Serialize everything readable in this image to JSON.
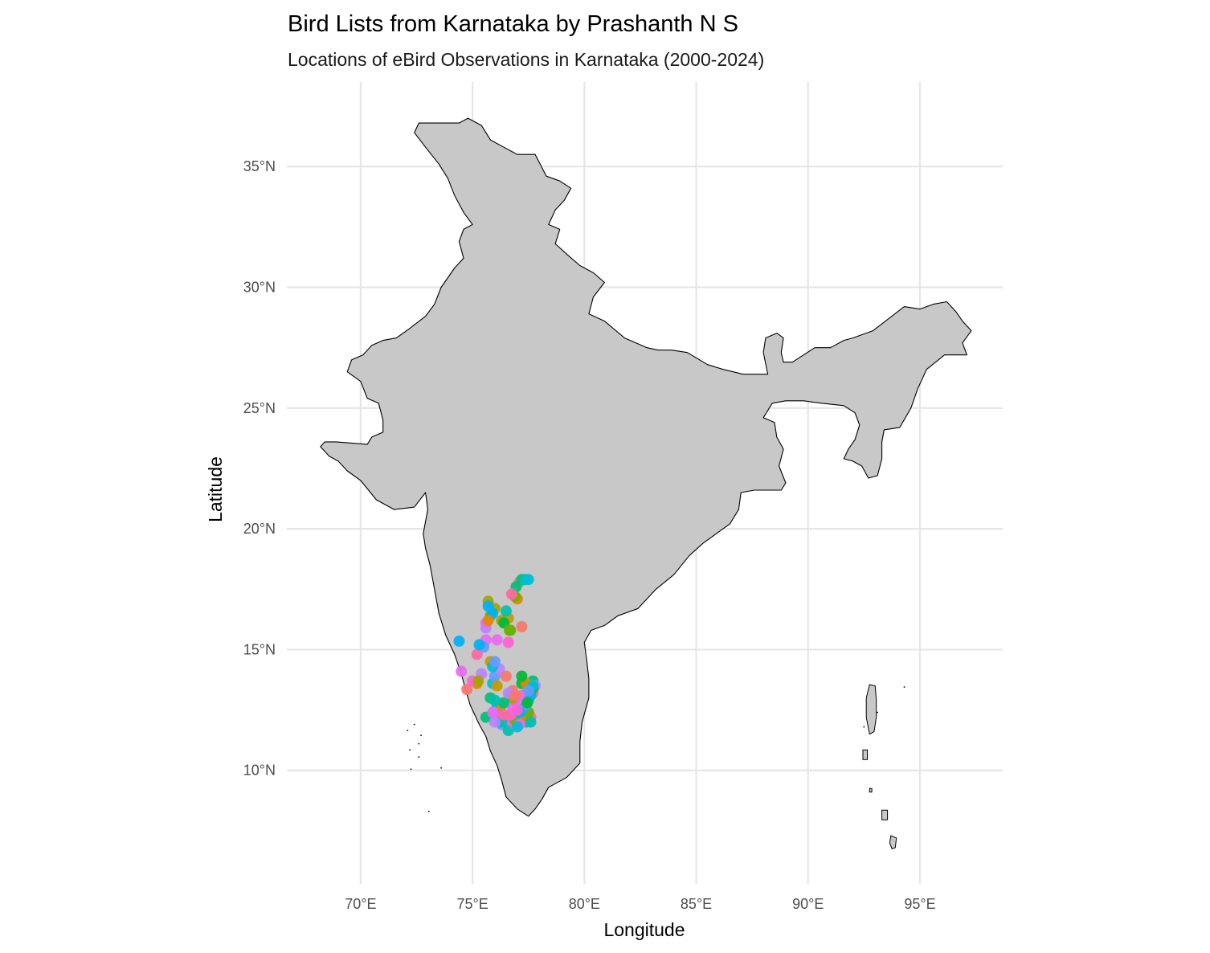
{
  "chart_data": {
    "type": "scatter",
    "title": "Bird Lists from Karnataka by Prashanth N S",
    "subtitle": "Locations of eBird Observations in Karnataka (2000-2024)",
    "xlabel": "Longitude",
    "ylabel": "Latitude",
    "xlim": [
      66.7,
      98.7
    ],
    "ylim": [
      5.3,
      38.5
    ],
    "x_ticks": [
      {
        "value": 70,
        "label": "70°E"
      },
      {
        "value": 75,
        "label": "75°E"
      },
      {
        "value": 80,
        "label": "80°E"
      },
      {
        "value": 85,
        "label": "85°E"
      },
      {
        "value": 90,
        "label": "90°E"
      },
      {
        "value": 95,
        "label": "95°E"
      }
    ],
    "y_ticks": [
      {
        "value": 10,
        "label": "10°N"
      },
      {
        "value": 15,
        "label": "15°N"
      },
      {
        "value": 20,
        "label": "20°N"
      },
      {
        "value": 25,
        "label": "25°N"
      },
      {
        "value": 30,
        "label": "30°N"
      },
      {
        "value": 35,
        "label": "35°N"
      }
    ],
    "grid": true,
    "legend": "none",
    "colors": {
      "land_fill": "#c8c8c8",
      "border": "#000000",
      "grid": "#e6e6e6",
      "palette": [
        "#F8766D",
        "#E58700",
        "#C99800",
        "#A3A500",
        "#6BB100",
        "#00BA38",
        "#00BF7D",
        "#00C0AF",
        "#00BCD8",
        "#00B0F6",
        "#619CFF",
        "#B983FF",
        "#E76BF3",
        "#FD61D1",
        "#FF67A4"
      ]
    },
    "boundary": [
      [
        70.3,
        23.5
      ],
      [
        68.9,
        23.6
      ],
      [
        68.4,
        23.6
      ],
      [
        68.2,
        23.4
      ],
      [
        68.6,
        23.0
      ],
      [
        69.0,
        22.8
      ],
      [
        69.4,
        22.4
      ],
      [
        70.0,
        22.0
      ],
      [
        70.7,
        21.2
      ],
      [
        71.5,
        20.8
      ],
      [
        72.4,
        20.9
      ],
      [
        72.9,
        21.5
      ],
      [
        73.0,
        20.8
      ],
      [
        72.8,
        19.8
      ],
      [
        72.9,
        19.2
      ],
      [
        73.1,
        18.5
      ],
      [
        73.3,
        17.5
      ],
      [
        73.5,
        16.5
      ],
      [
        73.8,
        15.6
      ],
      [
        74.2,
        14.8
      ],
      [
        74.5,
        14.0
      ],
      [
        74.7,
        13.3
      ],
      [
        74.9,
        12.7
      ],
      [
        75.3,
        11.9
      ],
      [
        75.6,
        11.4
      ],
      [
        75.8,
        10.8
      ],
      [
        76.1,
        10.2
      ],
      [
        76.3,
        9.6
      ],
      [
        76.5,
        8.9
      ],
      [
        77.0,
        8.4
      ],
      [
        77.5,
        8.1
      ],
      [
        77.8,
        8.4
      ],
      [
        78.1,
        8.8
      ],
      [
        78.4,
        9.3
      ],
      [
        79.2,
        9.7
      ],
      [
        79.8,
        10.3
      ],
      [
        79.8,
        11.2
      ],
      [
        79.9,
        12.0
      ],
      [
        80.2,
        13.0
      ],
      [
        80.2,
        13.8
      ],
      [
        80.1,
        14.6
      ],
      [
        80.0,
        15.3
      ],
      [
        80.3,
        15.8
      ],
      [
        80.9,
        16.0
      ],
      [
        81.5,
        16.4
      ],
      [
        82.4,
        16.7
      ],
      [
        83.2,
        17.5
      ],
      [
        84.0,
        18.1
      ],
      [
        84.7,
        18.9
      ],
      [
        85.3,
        19.4
      ],
      [
        85.9,
        19.8
      ],
      [
        86.5,
        20.2
      ],
      [
        86.9,
        20.8
      ],
      [
        87.0,
        21.5
      ],
      [
        87.6,
        21.6
      ],
      [
        88.2,
        21.6
      ],
      [
        88.8,
        21.6
      ],
      [
        89.0,
        21.9
      ],
      [
        88.7,
        22.6
      ],
      [
        88.9,
        23.3
      ],
      [
        88.6,
        23.8
      ],
      [
        88.5,
        24.4
      ],
      [
        88.0,
        24.6
      ],
      [
        88.4,
        25.2
      ],
      [
        89.0,
        25.3
      ],
      [
        89.8,
        25.3
      ],
      [
        90.6,
        25.2
      ],
      [
        91.6,
        25.1
      ],
      [
        92.1,
        24.8
      ],
      [
        92.3,
        24.3
      ],
      [
        92.1,
        23.7
      ],
      [
        91.8,
        23.3
      ],
      [
        91.6,
        22.9
      ],
      [
        92.0,
        22.8
      ],
      [
        92.4,
        22.6
      ],
      [
        92.7,
        22.1
      ],
      [
        93.1,
        22.2
      ],
      [
        93.3,
        22.9
      ],
      [
        93.3,
        23.6
      ],
      [
        93.4,
        24.1
      ],
      [
        94.1,
        24.2
      ],
      [
        94.6,
        25.0
      ],
      [
        94.9,
        25.8
      ],
      [
        95.3,
        26.6
      ],
      [
        96.1,
        27.2
      ],
      [
        97.1,
        27.2
      ],
      [
        96.9,
        27.7
      ],
      [
        97.3,
        28.2
      ],
      [
        96.9,
        28.6
      ],
      [
        96.6,
        29.0
      ],
      [
        96.2,
        29.4
      ],
      [
        95.6,
        29.3
      ],
      [
        95.0,
        29.1
      ],
      [
        94.3,
        29.2
      ],
      [
        93.6,
        28.7
      ],
      [
        92.9,
        28.2
      ],
      [
        92.0,
        27.9
      ],
      [
        91.6,
        27.8
      ],
      [
        91.0,
        27.5
      ],
      [
        90.3,
        27.5
      ],
      [
        89.8,
        27.2
      ],
      [
        89.3,
        26.9
      ],
      [
        88.9,
        26.9
      ],
      [
        88.8,
        27.3
      ],
      [
        88.9,
        27.9
      ],
      [
        88.6,
        28.1
      ],
      [
        88.1,
        27.9
      ],
      [
        88.0,
        27.3
      ],
      [
        88.2,
        26.4
      ],
      [
        87.1,
        26.4
      ],
      [
        86.2,
        26.6
      ],
      [
        85.5,
        26.8
      ],
      [
        84.6,
        27.3
      ],
      [
        83.9,
        27.4
      ],
      [
        83.3,
        27.4
      ],
      [
        82.8,
        27.5
      ],
      [
        81.8,
        27.9
      ],
      [
        80.9,
        28.6
      ],
      [
        80.2,
        28.9
      ],
      [
        80.4,
        29.6
      ],
      [
        80.9,
        30.2
      ],
      [
        80.4,
        30.6
      ],
      [
        79.8,
        30.9
      ],
      [
        79.3,
        31.3
      ],
      [
        78.7,
        31.8
      ],
      [
        78.9,
        32.4
      ],
      [
        78.4,
        32.6
      ],
      [
        78.7,
        33.2
      ],
      [
        79.1,
        33.6
      ],
      [
        79.4,
        34.1
      ],
      [
        78.9,
        34.4
      ],
      [
        78.3,
        34.6
      ],
      [
        77.8,
        35.5
      ],
      [
        77.0,
        35.5
      ],
      [
        76.4,
        35.8
      ],
      [
        75.8,
        36.1
      ],
      [
        75.4,
        36.7
      ],
      [
        74.8,
        37.0
      ],
      [
        74.4,
        36.8
      ],
      [
        73.9,
        36.8
      ],
      [
        72.6,
        36.8
      ],
      [
        72.4,
        36.4
      ],
      [
        72.9,
        35.8
      ],
      [
        73.5,
        35.1
      ],
      [
        73.9,
        34.5
      ],
      [
        74.2,
        33.8
      ],
      [
        74.6,
        33.1
      ],
      [
        75.0,
        32.6
      ],
      [
        74.6,
        32.4
      ],
      [
        74.4,
        31.9
      ],
      [
        74.6,
        31.2
      ],
      [
        74.2,
        30.8
      ],
      [
        73.6,
        30.0
      ],
      [
        73.3,
        29.3
      ],
      [
        72.9,
        28.8
      ],
      [
        72.2,
        28.3
      ],
      [
        71.6,
        27.9
      ],
      [
        71.0,
        27.8
      ],
      [
        70.5,
        27.6
      ],
      [
        70.1,
        27.2
      ],
      [
        69.6,
        27.0
      ],
      [
        69.4,
        26.5
      ],
      [
        70.0,
        26.1
      ],
      [
        70.3,
        25.4
      ],
      [
        70.8,
        25.2
      ],
      [
        71.0,
        24.5
      ],
      [
        71.0,
        24.0
      ],
      [
        70.5,
        23.8
      ],
      [
        70.3,
        23.5
      ]
    ],
    "islands": [
      {
        "name": "Andaman",
        "points": [
          [
            92.75,
            13.55
          ],
          [
            93.0,
            13.5
          ],
          [
            93.05,
            12.9
          ],
          [
            93.05,
            12.2
          ],
          [
            92.95,
            11.6
          ],
          [
            92.75,
            11.5
          ],
          [
            92.6,
            12.2
          ],
          [
            92.6,
            13.0
          ],
          [
            92.75,
            13.55
          ]
        ]
      },
      {
        "name": "Little Andaman",
        "points": [
          [
            92.45,
            10.85
          ],
          [
            92.65,
            10.85
          ],
          [
            92.65,
            10.45
          ],
          [
            92.45,
            10.45
          ],
          [
            92.45,
            10.85
          ]
        ]
      },
      {
        "name": "Car Nicobar",
        "points": [
          [
            92.75,
            9.25
          ],
          [
            92.85,
            9.25
          ],
          [
            92.85,
            9.1
          ],
          [
            92.75,
            9.1
          ],
          [
            92.75,
            9.25
          ]
        ]
      },
      {
        "name": "Nancowry",
        "points": [
          [
            93.3,
            8.35
          ],
          [
            93.55,
            8.35
          ],
          [
            93.55,
            7.95
          ],
          [
            93.3,
            7.95
          ],
          [
            93.3,
            8.35
          ]
        ]
      },
      {
        "name": "Great Nicobar",
        "points": [
          [
            93.7,
            7.3
          ],
          [
            93.95,
            7.2
          ],
          [
            93.9,
            6.8
          ],
          [
            93.75,
            6.75
          ],
          [
            93.65,
            7.0
          ],
          [
            93.7,
            7.3
          ]
        ]
      }
    ],
    "specks": [
      [
        72.1,
        11.65
      ],
      [
        72.7,
        11.45
      ],
      [
        72.6,
        11.1
      ],
      [
        72.6,
        10.55
      ],
      [
        72.2,
        10.85
      ],
      [
        72.25,
        10.05
      ],
      [
        73.6,
        10.1
      ],
      [
        73.05,
        8.3
      ],
      [
        72.4,
        11.9
      ],
      [
        94.3,
        13.45
      ],
      [
        93.1,
        12.4
      ],
      [
        92.5,
        11.8
      ]
    ],
    "series": [
      {
        "name": "",
        "x": [
          77.1,
          77.0,
          76.6,
          76.3,
          76.7,
          77.2,
          77.5,
          76.5,
          75.9,
          76.1,
          76.3,
          77.6,
          76.8,
          77.2
        ],
        "y": [
          17.8,
          17.1,
          16.3,
          16.2,
          15.8,
          13.6,
          12.9,
          12.2,
          13.6,
          12.6,
          11.9,
          13.2,
          12.6,
          13.1
        ]
      },
      {
        "name": "",
        "x": [
          76.0,
          75.8,
          76.4,
          77.7,
          76.6,
          76.1,
          77.4,
          76.7,
          77.8,
          75.6,
          76.9
        ],
        "y": [
          16.7,
          16.4,
          16.1,
          13.7,
          11.65,
          12.3,
          12.0,
          13.2,
          13.5,
          15.4,
          12.9
        ]
      },
      {
        "name": "",
        "x": [
          77.2,
          77.35,
          77.5,
          75.9,
          76.0,
          75.6,
          76.5,
          77.3,
          76.9,
          77.7
        ],
        "y": [
          17.9,
          17.9,
          17.9,
          16.5,
          13.9,
          15.9,
          12.1,
          12.5,
          11.9,
          13.2
        ]
      },
      {
        "name": "",
        "x": [
          74.4,
          75.5,
          76.2,
          77.0,
          76.0,
          77.6,
          76.8,
          77.3
        ],
        "y": [
          15.35,
          15.1,
          14.2,
          13.0,
          12.4,
          12.2,
          13.3,
          12.1
        ]
      },
      {
        "name": "",
        "x": [
          76.1,
          76.6,
          75.2,
          76.5,
          77.4,
          76.3,
          77.5,
          76.9
        ],
        "y": [
          15.4,
          15.3,
          14.8,
          13.9,
          13.6,
          12.7,
          12.4,
          12.1
        ]
      },
      {
        "name": "",
        "x": [
          74.75,
          75.2,
          75.8,
          76.8,
          77.5,
          77.7,
          76.4,
          77.6,
          77.3,
          77.6
        ],
        "y": [
          13.35,
          13.6,
          14.5,
          13.0,
          12.4,
          13.4,
          12.8,
          12.0,
          12.6,
          13.1
        ]
      },
      {
        "name": "",
        "x": [
          75.7,
          76.9,
          77.2,
          75.6,
          76.3,
          77.7,
          75.3,
          77.4,
          76.6,
          77.1
        ],
        "y": [
          17.0,
          17.2,
          13.9,
          12.2,
          12.0,
          13.5,
          15.2,
          12.7,
          13.2,
          11.9
        ]
      },
      {
        "name": "",
        "x": [
          76.95,
          76.5,
          75.9,
          77.1,
          77.5,
          76.0,
          75.6,
          76.7
        ],
        "y": [
          17.6,
          16.6,
          14.3,
          12.4,
          13.3,
          12.0,
          16.1,
          12.3
        ]
      },
      {
        "name": "",
        "x": [
          75.7,
          76.0,
          75.4,
          75.9,
          77.0,
          76.4,
          76.9
        ],
        "y": [
          16.8,
          14.5,
          14.0,
          12.4,
          12.5,
          12.3,
          13.1
        ]
      },
      {
        "name": "",
        "x": [
          74.5,
          75.0,
          76.75,
          77.2,
          75.7,
          76.1,
          75.25,
          76.65,
          77.45,
          75.8,
          76.0,
          77.0
        ],
        "y": [
          14.1,
          13.7,
          17.3,
          15.95,
          16.2,
          13.5,
          13.7,
          15.8,
          12.8,
          13.0,
          12.9,
          11.8
        ]
      }
    ]
  }
}
